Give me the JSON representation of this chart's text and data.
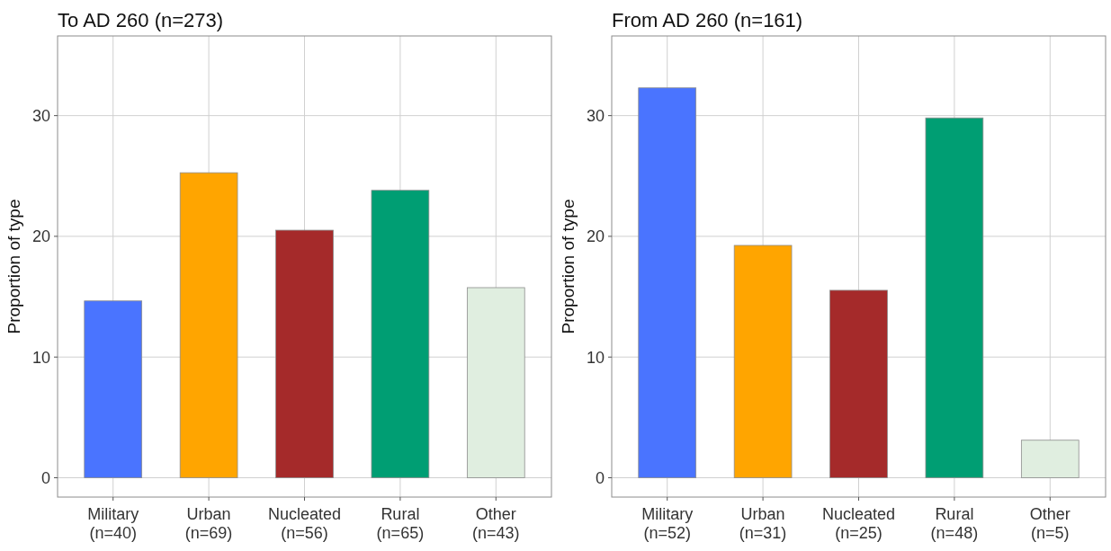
{
  "chart_data": [
    {
      "type": "bar",
      "title": "To AD 260 (n=273)",
      "ylabel": "Proportion of type",
      "categories": [
        "Military\n(n=40)",
        "Urban\n(n=69)",
        "Nucleated\n(n=56)",
        "Rural\n(n=65)",
        "Other\n(n=43)"
      ],
      "values": [
        14.65,
        25.27,
        20.51,
        23.81,
        15.75
      ],
      "colors": [
        "#4a74ff",
        "#ffa500",
        "#a52a2a",
        "#009e73",
        "#e0eee0"
      ],
      "ylim": [
        -1.6,
        36.6
      ],
      "yticks": [
        0,
        10,
        20,
        30
      ],
      "grid": true
    },
    {
      "type": "bar",
      "title": "From AD 260 (n=161)",
      "ylabel": "Proportion of type",
      "categories": [
        "Military\n(n=52)",
        "Urban\n(n=31)",
        "Nucleated\n(n=25)",
        "Rural\n(n=48)",
        "Other\n(n=5)"
      ],
      "values": [
        32.3,
        19.25,
        15.53,
        29.81,
        3.11
      ],
      "colors": [
        "#4a74ff",
        "#ffa500",
        "#a52a2a",
        "#009e73",
        "#e0eee0"
      ],
      "ylim": [
        -1.6,
        36.6
      ],
      "yticks": [
        0,
        10,
        20,
        30
      ],
      "grid": true
    }
  ]
}
